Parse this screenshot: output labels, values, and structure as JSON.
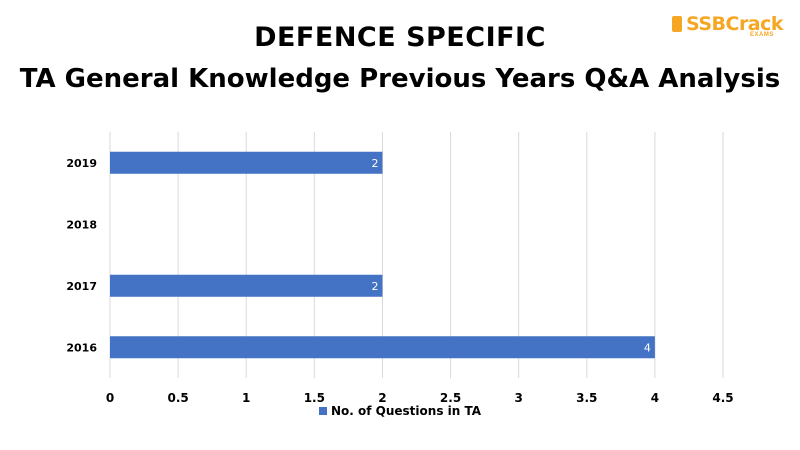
{
  "brand": {
    "name": "SSBCrack",
    "sub": "EXAMS",
    "accent_color": "#f5a623"
  },
  "chart_data": {
    "type": "bar",
    "orientation": "horizontal",
    "title": "DEFENCE SPECIFIC",
    "subtitle": "TA General Knowledge Previous Years Q&A Analysis",
    "categories": [
      "2019",
      "2018",
      "2017",
      "2016"
    ],
    "series": [
      {
        "name": "No. of Questions in TA",
        "values": [
          2,
          null,
          2,
          4
        ],
        "labels": [
          "2",
          "",
          "2",
          "4"
        ],
        "color": "#4472c4"
      }
    ],
    "xlim": [
      0,
      4.5
    ],
    "xticks": [
      0,
      0.5,
      1,
      1.5,
      2,
      2.5,
      3,
      3.5,
      4,
      4.5
    ],
    "xtick_labels": [
      "0",
      "0.5",
      "1",
      "1.5",
      "2",
      "2.5",
      "3",
      "3.5",
      "4",
      "4.5"
    ],
    "grid": true,
    "legend_position": "bottom"
  }
}
